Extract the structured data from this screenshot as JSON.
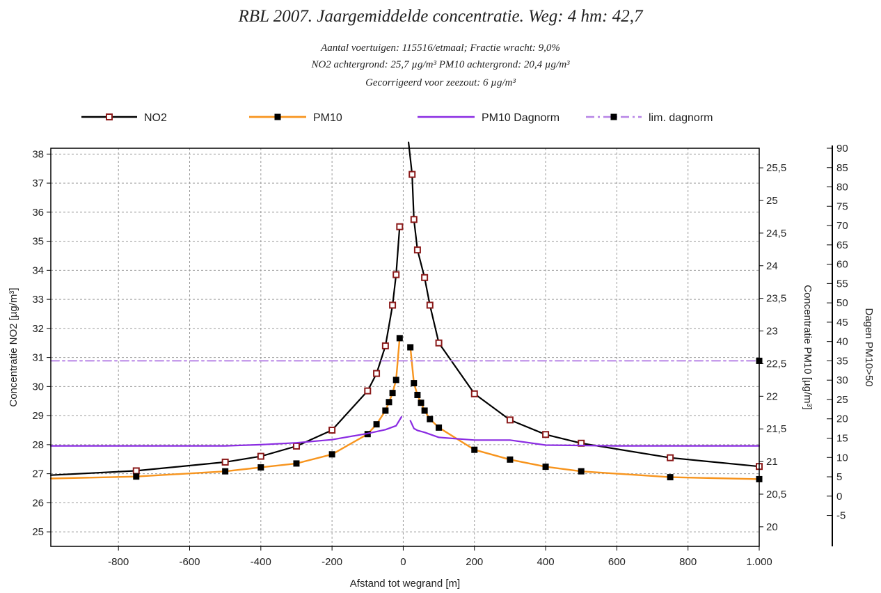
{
  "chart_data": {
    "type": "line",
    "title": "RBL 2007. Jaargemiddelde concentratie. Weg: 4 hm: 42,7",
    "subtitle_lines": [
      "Aantal voertuigen: 115516/etmaal;  Fractie wracht: 9,0%",
      "NO2 achtergrond: 25,7 µg/m³ PM10 achtergrond: 20,4 µg/m³",
      "Gecorrigeerd voor zeezout: 6 µg/m³"
    ],
    "xlabel": "Afstand tot wegrand [m]",
    "ylabel_left": "Concentratie NO2 [µg/m³]",
    "ylabel_right1": "Concentratie PM10 [µg/m³]",
    "ylabel_right2": "Dagen PM10>50",
    "xlim": [
      -990,
      1000
    ],
    "ylim_left": [
      24.5,
      38.2
    ],
    "ylim_right1": [
      19.7,
      25.8
    ],
    "ylim_right2": [
      -13,
      90
    ],
    "x_ticks": [
      -800,
      -600,
      -400,
      -200,
      0,
      200,
      400,
      600,
      800,
      1000
    ],
    "x_tick_labels": [
      "-800",
      "-600",
      "-400",
      "-200",
      "0",
      "200",
      "400",
      "600",
      "800",
      "1.000"
    ],
    "y_left_ticks": [
      25,
      26,
      27,
      28,
      29,
      30,
      31,
      32,
      33,
      34,
      35,
      36,
      37,
      38
    ],
    "y_left_tick_labels": [
      "25",
      "26",
      "27",
      "28",
      "29",
      "30",
      "31",
      "32",
      "33",
      "34",
      "35",
      "36",
      "37",
      "38"
    ],
    "y_right1_ticks": [
      20,
      20.5,
      21,
      21.5,
      22,
      22.5,
      23,
      23.5,
      24,
      24.5,
      25,
      25.5
    ],
    "y_right1_tick_labels": [
      "20",
      "20,5",
      "21",
      "21,5",
      "22",
      "22,5",
      "23",
      "23,5",
      "24",
      "24,5",
      "25",
      "25,5"
    ],
    "y_right2_ticks": [
      -5,
      0,
      5,
      10,
      15,
      20,
      25,
      30,
      35,
      40,
      45,
      50,
      55,
      60,
      65,
      70,
      75,
      80,
      85,
      90
    ],
    "y_right2_tick_labels": [
      "-5",
      "0",
      "5",
      "10",
      "15",
      "20",
      "25",
      "30",
      "35",
      "40",
      "45",
      "50",
      "55",
      "60",
      "65",
      "70",
      "75",
      "80",
      "85",
      "90"
    ],
    "grid": true,
    "legend_position": "top",
    "series": [
      {
        "name": "NO2",
        "axis": "left",
        "color": "#000000",
        "marker_color": "#8b1a1a",
        "branches": [
          {
            "x": [
              -990,
              -750,
              -500,
              -400,
              -300,
              -200,
              -100,
              -75,
              -50,
              -30,
              -20,
              -10,
              -5
            ],
            "y": [
              26.95,
              27.1,
              27.4,
              27.6,
              27.95,
              28.5,
              29.85,
              30.45,
              31.4,
              32.8,
              33.85,
              35.5,
              35.55
            ],
            "markers": [
              false,
              true,
              true,
              true,
              true,
              true,
              true,
              true,
              true,
              true,
              true,
              true,
              false
            ]
          },
          {
            "x": [
              15,
              25,
              30,
              40,
              60,
              75,
              100,
              200,
              300,
              400,
              500,
              750,
              1000
            ],
            "y": [
              38.4,
              37.3,
              35.75,
              34.7,
              33.75,
              32.8,
              31.5,
              29.75,
              28.85,
              28.35,
              28.05,
              27.55,
              27.25
            ],
            "markers": [
              false,
              true,
              true,
              true,
              true,
              true,
              true,
              true,
              true,
              true,
              true,
              true,
              true
            ]
          }
        ]
      },
      {
        "name": "PM10",
        "axis": "right1",
        "color": "#f7941d",
        "marker_color": "#000000",
        "branches": [
          {
            "x": [
              -990,
              -750,
              -500,
              -400,
              -300,
              -200,
              -100,
              -75,
              -50,
              -40,
              -30,
              -20,
              -10
            ],
            "y": [
              20.74,
              20.77,
              20.85,
              20.91,
              20.97,
              21.11,
              21.42,
              21.57,
              21.78,
              21.91,
              22.05,
              22.25,
              22.89
            ],
            "markers": [
              false,
              true,
              true,
              true,
              true,
              true,
              true,
              true,
              true,
              true,
              true,
              true,
              true
            ]
          },
          {
            "x": [
              20,
              30,
              40,
              50,
              60,
              75,
              100,
              200,
              300,
              400,
              500,
              750,
              1000
            ],
            "y": [
              22.75,
              22.2,
              22.02,
              21.9,
              21.78,
              21.65,
              21.52,
              21.18,
              21.03,
              20.92,
              20.85,
              20.76,
              20.73
            ],
            "markers": [
              true,
              true,
              true,
              true,
              true,
              true,
              true,
              true,
              true,
              true,
              true,
              true,
              true
            ]
          }
        ]
      },
      {
        "name": "PM10 Dagnorm",
        "axis": "right2",
        "color": "#8a2be2",
        "marker_color": "",
        "branches": [
          {
            "x": [
              -990,
              -750,
              -500,
              -400,
              -300,
              -200,
              -100,
              -50,
              -20,
              -5
            ],
            "y": [
              13,
              13,
              13,
              13.3,
              13.8,
              14.6,
              16.2,
              17.2,
              18.2,
              20.5
            ],
            "markers": [
              false,
              false,
              false,
              false,
              false,
              false,
              false,
              false,
              false,
              false
            ]
          },
          {
            "x": [
              20,
              30,
              40,
              60,
              100,
              200,
              300,
              400,
              600,
              800,
              1000
            ],
            "y": [
              19.5,
              17.5,
              17,
              16.5,
              15.2,
              14.5,
              14.5,
              13.2,
              13,
              13,
              13
            ],
            "markers": [
              false,
              false,
              false,
              false,
              false,
              false,
              false,
              false,
              false,
              false,
              false
            ]
          }
        ]
      },
      {
        "name": "lim. dagnorm",
        "axis": "right2",
        "color": "#b784e6",
        "marker_color": "#000000",
        "branches": [
          {
            "x": [
              -990,
              1000
            ],
            "y": [
              35,
              35
            ],
            "markers": [
              false,
              true
            ]
          }
        ]
      }
    ]
  }
}
